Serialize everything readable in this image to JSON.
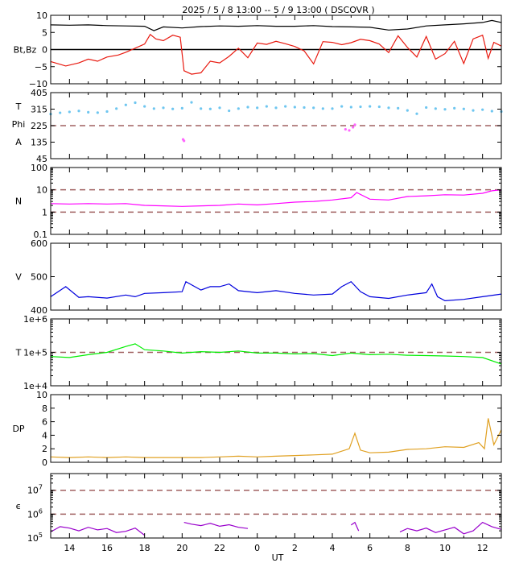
{
  "header": {
    "title": "2025 / 5 / 8  13:00 -- 5 / 9  13:00 ( DSCOVR )"
  },
  "x_axis": {
    "label": "UT",
    "range": [
      13,
      37
    ],
    "ticks": [
      14,
      16,
      18,
      20,
      22,
      24,
      26,
      28,
      30,
      32,
      34,
      36
    ],
    "tick_labels": [
      "14",
      "16",
      "18",
      "20",
      "22",
      "0",
      "2",
      "4",
      "6",
      "8",
      "10",
      "12"
    ]
  },
  "chart_data": [
    {
      "id": "bt_bz",
      "type": "line",
      "ylabel": "Bt,Bz",
      "scale": "linear",
      "ylim": [
        -10,
        10
      ],
      "yticks": [
        -10,
        -5,
        0,
        5,
        10
      ],
      "ytick_labels": [
        "−10",
        "−5",
        "0",
        "5",
        "10"
      ],
      "reference_lines": [
        {
          "y": 0,
          "color": "#000000",
          "style": "solid"
        }
      ],
      "series": [
        {
          "name": "Bt",
          "color": "#000000",
          "x": [
            13,
            14,
            15,
            16,
            17,
            18,
            18.5,
            19,
            20,
            21,
            22,
            23,
            24,
            25,
            26,
            27,
            28,
            29,
            30,
            31,
            32,
            33,
            34,
            35,
            36,
            36.5,
            37
          ],
          "y": [
            7.2,
            7.1,
            7.2,
            7.0,
            6.9,
            6.8,
            5.5,
            6.6,
            6.3,
            6.7,
            6.9,
            6.8,
            7.0,
            6.8,
            6.8,
            7.0,
            6.7,
            6.6,
            6.5,
            5.7,
            6.0,
            6.9,
            7.2,
            7.5,
            7.9,
            8.5,
            7.9
          ]
        },
        {
          "name": "Bz",
          "color": "#e8190f",
          "x": [
            13,
            13.8,
            14.5,
            15,
            15.5,
            16,
            16.6,
            17,
            17.5,
            18,
            18.3,
            18.6,
            19,
            19.5,
            19.9,
            20.1,
            20.5,
            21,
            21.5,
            22,
            22.5,
            23,
            23.5,
            24,
            24.5,
            25,
            25.5,
            26,
            26.5,
            27,
            27.5,
            28,
            28.5,
            29,
            29.5,
            30,
            30.5,
            31,
            31.5,
            32,
            32.5,
            33,
            33.5,
            34,
            34.5,
            35,
            35.5,
            36,
            36.3,
            36.6,
            37
          ],
          "y": [
            -3.5,
            -4.8,
            -3.9,
            -2.8,
            -3.4,
            -2.2,
            -1.6,
            -0.8,
            0.4,
            1.6,
            4.4,
            3.1,
            2.6,
            4.2,
            3.6,
            -6.2,
            -7.2,
            -6.8,
            -3.4,
            -3.9,
            -2.0,
            0.4,
            -2.4,
            1.9,
            1.5,
            2.4,
            1.7,
            0.9,
            -0.4,
            -4.2,
            2.3,
            2.1,
            1.4,
            2.0,
            3.0,
            2.6,
            1.6,
            -0.9,
            4.0,
            0.6,
            -2.2,
            3.8,
            -2.8,
            -1.2,
            2.4,
            -4.1,
            3.1,
            4.2,
            -2.6,
            2.1,
            1.0
          ]
        }
      ]
    },
    {
      "id": "phi",
      "type": "scatter",
      "ylabel_lines": [
        "T",
        "Phi",
        "A"
      ],
      "scale": "linear",
      "ylim": [
        45,
        405
      ],
      "yticks": [
        45,
        135,
        225,
        315,
        405
      ],
      "ytick_labels": [
        "45",
        "135",
        "225",
        "315",
        "405"
      ],
      "reference_lines": [
        {
          "y": 225,
          "color": "#a06060",
          "style": "dashed"
        }
      ],
      "series": [
        {
          "name": "Phi",
          "color": "#6ec6f0",
          "x": [
            13,
            13.5,
            14,
            14.5,
            15,
            15.5,
            16,
            16.5,
            17,
            17.5,
            18,
            18.5,
            19,
            19.5,
            20,
            20.5,
            21,
            21.5,
            22,
            22.5,
            23,
            23.5,
            24,
            24.5,
            25,
            25.5,
            26,
            26.5,
            27,
            27.5,
            28,
            28.5,
            29,
            29.5,
            30,
            30.5,
            31,
            31.5,
            32,
            32.5,
            33,
            33.5,
            34,
            34.5,
            35,
            35.5,
            36,
            36.5,
            37
          ],
          "y": [
            288,
            295,
            300,
            305,
            298,
            296,
            302,
            318,
            338,
            350,
            330,
            318,
            322,
            316,
            320,
            352,
            318,
            316,
            322,
            306,
            318,
            326,
            322,
            330,
            322,
            330,
            326,
            324,
            322,
            318,
            318,
            330,
            326,
            328,
            330,
            328,
            322,
            320,
            308,
            290,
            324,
            318,
            314,
            320,
            316,
            308,
            312,
            304,
            302
          ]
        },
        {
          "name": "Phi-outliers",
          "color": "#ff66ff",
          "x": [
            20.05,
            20.1,
            28.7,
            28.9,
            29.1,
            29.2
          ],
          "y": [
            150,
            142,
            205,
            199,
            216,
            230
          ]
        }
      ]
    },
    {
      "id": "density",
      "type": "line",
      "ylabel": "N",
      "scale": "log",
      "ylim": [
        0.1,
        100
      ],
      "yticks": [
        0.1,
        1,
        10,
        100
      ],
      "ytick_labels": [
        "0.1",
        "1",
        "10",
        "100"
      ],
      "reference_lines": [
        {
          "y": 10,
          "color": "#a06060",
          "style": "dashed"
        },
        {
          "y": 1,
          "color": "#a06060",
          "style": "dashed"
        }
      ],
      "series": [
        {
          "name": "N",
          "color": "#ff00ff",
          "x": [
            13,
            14,
            15,
            16,
            17,
            18,
            19,
            20,
            21,
            22,
            23,
            24,
            25,
            26,
            27,
            28,
            29,
            29.3,
            30,
            31,
            32,
            33,
            34,
            35,
            36,
            36.5,
            37
          ],
          "y": [
            2.4,
            2.3,
            2.4,
            2.3,
            2.4,
            2.0,
            1.9,
            1.8,
            1.9,
            2.0,
            2.3,
            2.1,
            2.4,
            2.8,
            3.0,
            3.5,
            4.4,
            7.5,
            3.8,
            3.5,
            5.0,
            5.4,
            6.0,
            5.8,
            7.0,
            9.0,
            10.0
          ]
        }
      ]
    },
    {
      "id": "speed",
      "type": "line",
      "ylabel": "V",
      "scale": "linear",
      "ylim": [
        400,
        600
      ],
      "yticks": [
        400,
        500,
        600
      ],
      "ytick_labels": [
        "400",
        "500",
        "600"
      ],
      "reference_lines": [],
      "series": [
        {
          "name": "V",
          "color": "#0000dd",
          "x": [
            13,
            13.8,
            14.5,
            15,
            16,
            17,
            17.5,
            18,
            19,
            20,
            20.2,
            21,
            21.5,
            22,
            22.5,
            23,
            24,
            25,
            26,
            27,
            28,
            28.5,
            29,
            29.5,
            30,
            31,
            32,
            33,
            33.3,
            33.6,
            34,
            35,
            36,
            37
          ],
          "y": [
            440,
            470,
            438,
            440,
            436,
            445,
            440,
            450,
            452,
            455,
            485,
            460,
            470,
            470,
            478,
            458,
            452,
            458,
            450,
            445,
            448,
            470,
            485,
            455,
            440,
            435,
            445,
            452,
            478,
            440,
            428,
            432,
            440,
            448
          ]
        }
      ]
    },
    {
      "id": "temperature",
      "type": "line",
      "ylabel": "T",
      "scale": "log",
      "ylim": [
        10000,
        1000000
      ],
      "yticks": [
        10000,
        100000,
        1000000
      ],
      "ytick_labels": [
        "1e+4",
        "1e+5",
        "1e+6"
      ],
      "reference_lines": [
        {
          "y": 100000,
          "color": "#a06060",
          "style": "dashed"
        }
      ],
      "series": [
        {
          "name": "T",
          "color": "#00ee00",
          "x": [
            13,
            14,
            15,
            16,
            17,
            17.5,
            18,
            19,
            20,
            21,
            22,
            23,
            24,
            25,
            26,
            27,
            28,
            29,
            30,
            31,
            32,
            33,
            34,
            35,
            36,
            37
          ],
          "y": [
            75000,
            70000,
            85000,
            100000,
            150000,
            180000,
            120000,
            110000,
            95000,
            105000,
            100000,
            110000,
            95000,
            95000,
            90000,
            92000,
            80000,
            95000,
            85000,
            88000,
            82000,
            80000,
            78000,
            75000,
            70000,
            45000
          ]
        }
      ]
    },
    {
      "id": "pressure",
      "type": "line",
      "ylabel": "DP",
      "scale": "linear",
      "ylim": [
        0,
        10
      ],
      "yticks": [
        0,
        2,
        4,
        6,
        8,
        10
      ],
      "ytick_labels": [
        "0",
        "2",
        "4",
        "6",
        "8",
        "10"
      ],
      "reference_lines": [],
      "series": [
        {
          "name": "DP",
          "color": "#e0a020",
          "x": [
            13,
            14,
            15,
            16,
            17,
            18,
            19,
            20,
            21,
            22,
            23,
            24,
            25,
            26,
            27,
            28,
            28.9,
            29.2,
            29.5,
            30,
            31,
            32,
            33,
            34,
            35,
            35.8,
            36.1,
            36.3,
            36.6,
            37
          ],
          "y": [
            0.8,
            0.7,
            0.8,
            0.7,
            0.8,
            0.7,
            0.7,
            0.7,
            0.7,
            0.8,
            0.9,
            0.8,
            0.9,
            1.0,
            1.1,
            1.2,
            2.0,
            4.3,
            1.8,
            1.4,
            1.5,
            1.9,
            2.0,
            2.3,
            2.2,
            2.9,
            2.0,
            6.5,
            2.6,
            4.8
          ]
        }
      ]
    },
    {
      "id": "epsilon",
      "type": "line",
      "ylabel": "ϵ",
      "scale": "log",
      "ylim": [
        100000,
        50000000
      ],
      "yticks": [
        100000,
        1000000,
        10000000
      ],
      "ytick_labels": [
        "10",
        "10",
        "10"
      ],
      "ytick_superscripts": [
        "5",
        "6",
        "7"
      ],
      "reference_lines": [
        {
          "y": 10000000,
          "color": "#a06060",
          "style": "dashed"
        },
        {
          "y": 1000000,
          "color": "#a06060",
          "style": "dashed"
        }
      ],
      "series": [
        {
          "name": "Epsilon",
          "color": "#9900cc",
          "segments": [
            {
              "x": [
                13,
                13.5,
                14,
                14.5,
                15,
                15.5,
                16,
                16.5,
                17,
                17.5,
                18
              ],
              "y": [
                180000,
                300000,
                260000,
                200000,
                280000,
                220000,
                250000,
                170000,
                190000,
                260000,
                130000
              ]
            },
            {
              "x": [
                20.1,
                20.5,
                21,
                21.5,
                22,
                22.5,
                23,
                23.5
              ],
              "y": [
                450000,
                380000,
                330000,
                410000,
                310000,
                360000,
                280000,
                250000
              ]
            },
            {
              "x": [
                29.0,
                29.2,
                29.4
              ],
              "y": [
                350000,
                450000,
                200000
              ]
            },
            {
              "x": [
                31.6,
                32,
                32.5,
                33,
                33.5,
                34,
                34.5,
                35,
                35.5,
                36,
                36.5,
                37
              ],
              "y": [
                180000,
                250000,
                200000,
                260000,
                170000,
                220000,
                280000,
                150000,
                200000,
                450000,
                300000,
                230000
              ]
            }
          ]
        }
      ]
    }
  ]
}
